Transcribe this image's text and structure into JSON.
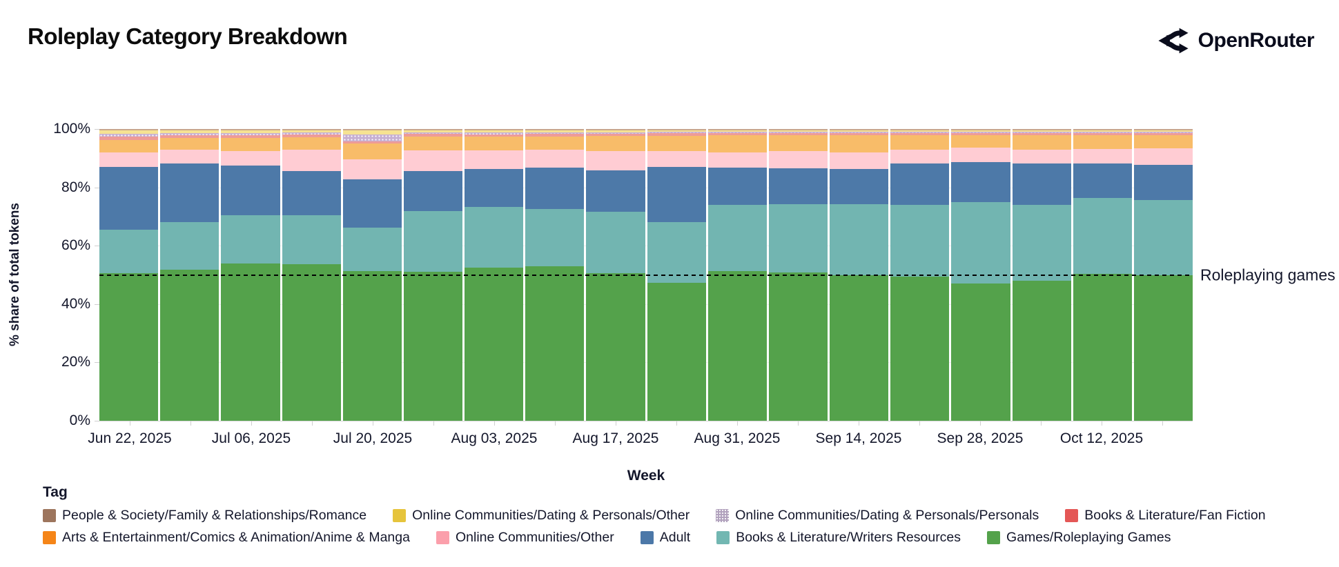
{
  "header": {
    "title": "Roleplay Category Breakdown",
    "brand": "OpenRouter"
  },
  "chart_data": {
    "type": "bar",
    "stacked": true,
    "normalized_percent": true,
    "title": "Roleplay Category Breakdown",
    "xlabel": "Week",
    "ylabel": "% share of total tokens",
    "ylim": [
      0,
      100
    ],
    "y_ticks": [
      "0%",
      "20%",
      "40%",
      "60%",
      "80%",
      "100%"
    ],
    "x_tick_labels": [
      "Jun 22, 2025",
      "Jul 06, 2025",
      "Jul 20, 2025",
      "Aug 03, 2025",
      "Aug 17, 2025",
      "Aug 31, 2025",
      "Sep 14, 2025",
      "Sep 28, 2025",
      "Oct 12, 2025"
    ],
    "categories": [
      "Jun 22, 2025",
      "Jun 29, 2025",
      "Jul 06, 2025",
      "Jul 13, 2025",
      "Jul 20, 2025",
      "Jul 27, 2025",
      "Aug 03, 2025",
      "Aug 10, 2025",
      "Aug 17, 2025",
      "Aug 24, 2025",
      "Aug 31, 2025",
      "Sep 07, 2025",
      "Sep 14, 2025",
      "Sep 21, 2025",
      "Sep 28, 2025",
      "Oct 05, 2025",
      "Oct 12, 2025",
      "Oct 19, 2025"
    ],
    "series": [
      {
        "name": "Games/Roleplaying Games",
        "color": "#54a24b",
        "legend_color": "#54a24b",
        "dotted": false,
        "values": [
          50.7,
          51.8,
          53.8,
          53.6,
          51.4,
          51.0,
          52.6,
          52.9,
          50.5,
          47.3,
          51.4,
          50.8,
          49.9,
          49.5,
          47.1,
          47.9,
          50.3,
          49.8
        ]
      },
      {
        "name": "Books & Literature/Writers Resources",
        "color": "#72b5b1",
        "legend_color": "#72b7b2",
        "dotted": false,
        "values": [
          14.8,
          16.4,
          16.7,
          16.8,
          14.8,
          20.9,
          20.7,
          19.7,
          21.2,
          20.9,
          22.7,
          23.4,
          24.3,
          24.4,
          27.8,
          26.0,
          26.0,
          25.9
        ]
      },
      {
        "name": "Adult",
        "color": "#4d79a8",
        "legend_color": "#4c78a8",
        "dotted": false,
        "values": [
          21.5,
          19.9,
          17.0,
          15.2,
          16.5,
          13.6,
          13.0,
          14.2,
          14.2,
          18.9,
          12.7,
          12.3,
          12.1,
          14.2,
          13.8,
          14.2,
          12.0,
          11.9
        ]
      },
      {
        "name": "Online Communities/Other",
        "color": "#ffccd3",
        "legend_color": "#fb9fab",
        "dotted": false,
        "values": [
          5.0,
          4.7,
          4.9,
          7.4,
          6.8,
          7.1,
          6.5,
          6.0,
          6.5,
          5.3,
          5.2,
          5.9,
          5.7,
          4.9,
          4.9,
          4.7,
          4.8,
          5.8
        ]
      },
      {
        "name": "Arts & Entertainment/Comics & Animation/Anime & Manga",
        "color": "#f8bc69",
        "legend_color": "#f58518",
        "dotted": false,
        "values": [
          4.2,
          4.1,
          4.6,
          4.2,
          5.5,
          4.8,
          4.5,
          4.7,
          5.2,
          5.3,
          5.9,
          5.4,
          5.8,
          5.0,
          4.3,
          5.0,
          4.8,
          4.6
        ]
      },
      {
        "name": "Books & Literature/Fan Fiction",
        "color": "#ee9b97",
        "legend_color": "#e45756",
        "dotted": false,
        "values": [
          1.2,
          1.0,
          0.9,
          0.9,
          0.7,
          0.9,
          0.9,
          0.8,
          0.8,
          0.8,
          0.7,
          0.7,
          0.7,
          0.7,
          0.7,
          0.8,
          0.7,
          0.7
        ]
      },
      {
        "name": "Online Communities/Dating & Personals/Personals",
        "color": "#c6afd2",
        "legend_color": "#b1a1bd",
        "dotted": true,
        "values": [
          0.9,
          0.7,
          0.8,
          0.7,
          2.5,
          0.5,
          0.6,
          0.5,
          0.5,
          0.5,
          0.4,
          0.5,
          0.5,
          0.4,
          0.4,
          0.4,
          0.4,
          0.4
        ]
      },
      {
        "name": "Online Communities/Dating & Personals/Other",
        "color": "#f6e292",
        "legend_color": "#e6c43c",
        "dotted": false,
        "values": [
          1.2,
          1.0,
          0.9,
          0.8,
          1.3,
          0.8,
          0.8,
          0.8,
          0.7,
          0.6,
          0.6,
          0.6,
          0.6,
          0.5,
          0.6,
          0.6,
          0.6,
          0.5
        ]
      },
      {
        "name": "People & Society/Family & Relationships/Romance",
        "color": "#c8a68c",
        "legend_color": "#9d755d",
        "dotted": false,
        "values": [
          0.5,
          0.4,
          0.4,
          0.4,
          0.5,
          0.4,
          0.4,
          0.4,
          0.4,
          0.4,
          0.4,
          0.4,
          0.4,
          0.4,
          0.4,
          0.4,
          0.4,
          0.4
        ]
      }
    ],
    "annotation": {
      "label": "Roleplaying games",
      "y": 50,
      "style": "dashed-black"
    },
    "grid": "subtle-horizontal",
    "legend_position": "bottom-left"
  },
  "legend": {
    "title": "Tag",
    "rows": [
      [
        8,
        7,
        6,
        5
      ],
      [
        4,
        3,
        2,
        1,
        0
      ]
    ]
  }
}
